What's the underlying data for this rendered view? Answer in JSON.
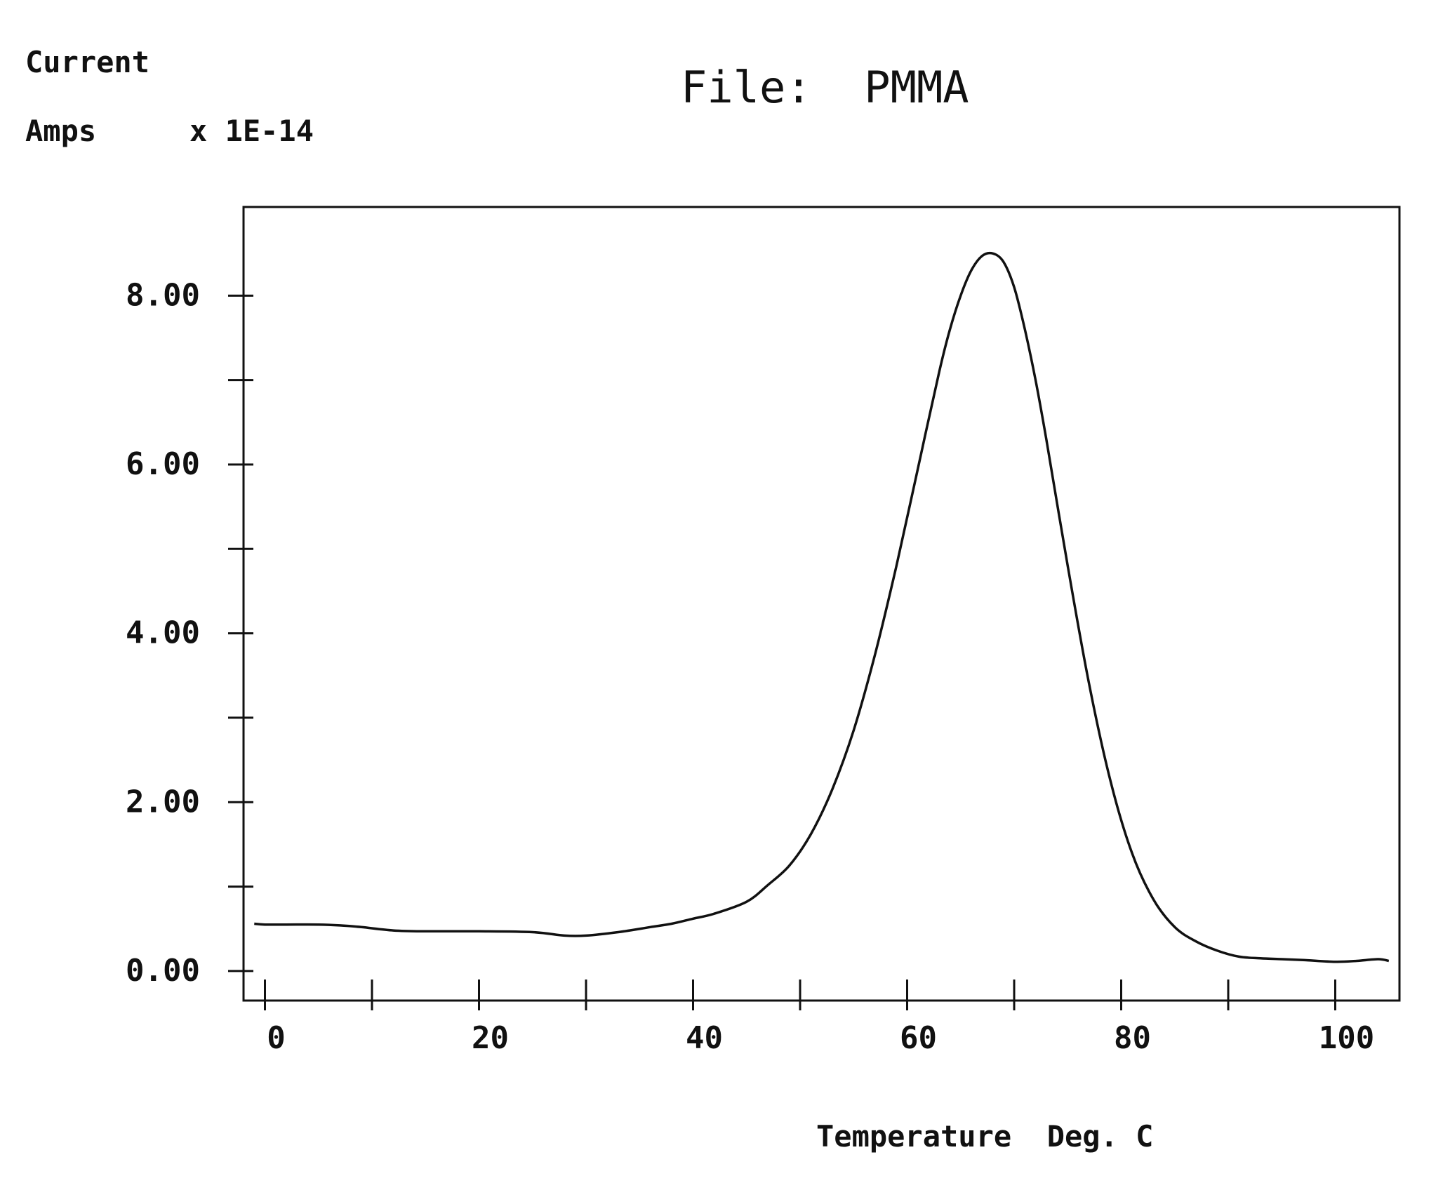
{
  "chart_data": {
    "type": "line",
    "title": "File:  PMMA",
    "ylabel_line1": "Current",
    "ylabel_line2": "Amps",
    "y_multiplier": "x 1E-14",
    "xlabel": "Temperature  Deg. C",
    "xlim": [
      -2,
      106
    ],
    "ylim": [
      -0.35,
      9.05
    ],
    "x_ticks": [
      0,
      10,
      20,
      30,
      40,
      50,
      60,
      70,
      80,
      90,
      100
    ],
    "x_tick_labels": [
      "0",
      "20",
      "40",
      "60",
      "80",
      "100"
    ],
    "x_tick_label_values": [
      0,
      20,
      40,
      60,
      80,
      100
    ],
    "y_ticks": [
      0,
      1,
      2,
      3,
      4,
      5,
      6,
      7,
      8
    ],
    "y_tick_labels": [
      "0.00",
      "2.00",
      "4.00",
      "6.00",
      "8.00"
    ],
    "y_tick_label_values": [
      0,
      2,
      4,
      6,
      8
    ],
    "grid": false,
    "line_color": "#111111",
    "series": [
      {
        "x": [
          -1,
          0,
          2,
          5,
          7,
          9,
          12,
          15,
          20,
          25,
          28,
          30,
          33,
          36,
          38,
          40,
          42,
          45,
          47,
          49,
          51,
          53,
          55,
          57,
          59,
          61,
          63,
          64,
          65,
          66,
          67,
          68,
          69,
          70,
          71,
          72,
          73,
          75,
          77,
          79,
          81,
          83,
          85,
          87,
          89,
          91,
          93,
          95,
          97,
          100,
          102,
          104,
          105
        ],
        "y": [
          0.56,
          0.55,
          0.55,
          0.55,
          0.54,
          0.52,
          0.48,
          0.47,
          0.47,
          0.46,
          0.42,
          0.42,
          0.46,
          0.52,
          0.56,
          0.62,
          0.68,
          0.82,
          1.02,
          1.25,
          1.62,
          2.15,
          2.85,
          3.75,
          4.8,
          5.95,
          7.1,
          7.6,
          8.0,
          8.3,
          8.47,
          8.5,
          8.4,
          8.1,
          7.6,
          7.0,
          6.3,
          4.8,
          3.4,
          2.25,
          1.4,
          0.85,
          0.52,
          0.35,
          0.24,
          0.17,
          0.15,
          0.14,
          0.13,
          0.11,
          0.12,
          0.14,
          0.12
        ]
      }
    ]
  }
}
